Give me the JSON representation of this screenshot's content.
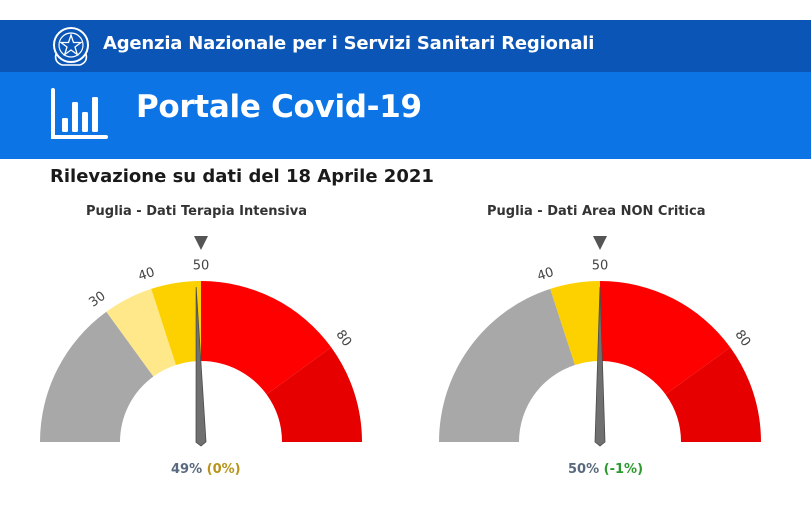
{
  "header": {
    "agency_title": "Agenzia Nazionale per i Servizi Sanitari Regionali",
    "portal_title": "Portale Covid-19",
    "emblem_icon": "italian-republic-emblem-icon",
    "chart_icon": "bar-chart-icon",
    "colors": {
      "top_bar": "#0a55b6",
      "portal_bar": "#0d74e6"
    }
  },
  "survey_date": "Rilevazione su dati del 18 Aprile 2021",
  "gauges": [
    {
      "title": "Puglia - Dati Terapia Intensiva",
      "tick_labels": [
        "30",
        "40",
        "50",
        "80"
      ],
      "value_percent": 49,
      "value_label": "49%",
      "delta_label": "(0%)",
      "threshold_marker": 50
    },
    {
      "title": "Puglia - Dati Area NON Critica",
      "tick_labels": [
        "40",
        "50",
        "80"
      ],
      "value_percent": 50,
      "value_label": "50%",
      "delta_label": "(-1%)",
      "threshold_marker": 50
    }
  ],
  "chart_data": [
    {
      "type": "gauge",
      "title": "Puglia - Dati Terapia Intensiva",
      "range": [
        0,
        100
      ],
      "bands": [
        {
          "from": 0,
          "to": 30,
          "color": "#a8a8a8"
        },
        {
          "from": 30,
          "to": 40,
          "color": "#fee88a"
        },
        {
          "from": 40,
          "to": 50,
          "color": "#fdd000"
        },
        {
          "from": 50,
          "to": 80,
          "color": "#ff0000"
        },
        {
          "from": 80,
          "to": 100,
          "color": "#e60000"
        }
      ],
      "value": 49,
      "marker": 50
    },
    {
      "type": "gauge",
      "title": "Puglia - Dati Area NON Critica",
      "range": [
        0,
        100
      ],
      "bands": [
        {
          "from": 0,
          "to": 40,
          "color": "#a8a8a8"
        },
        {
          "from": 40,
          "to": 50,
          "color": "#fdd000"
        },
        {
          "from": 50,
          "to": 80,
          "color": "#ff0000"
        },
        {
          "from": 80,
          "to": 100,
          "color": "#e60000"
        }
      ],
      "value": 50,
      "marker": 50
    }
  ]
}
